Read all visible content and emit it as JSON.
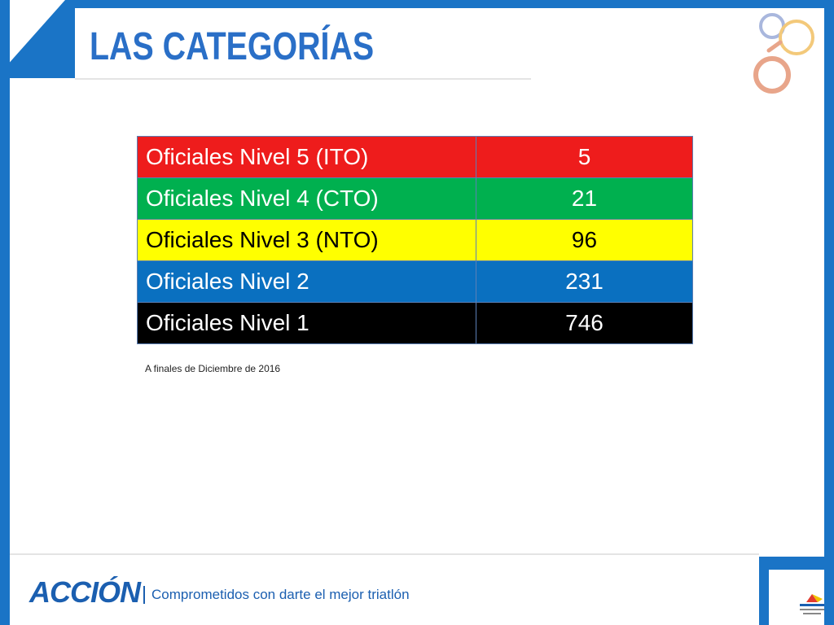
{
  "slide": {
    "title": "LAS CATEGORÍAS",
    "note": "A finales de Diciembre de 2016"
  },
  "table": {
    "rows": [
      {
        "label": "Oficiales Nivel 5 (ITO)",
        "value": "5",
        "bg": "#ee1c1c",
        "fg": "#ffffff"
      },
      {
        "label": "Oficiales Nivel 4 (CTO)",
        "value": "21",
        "bg": "#00b04f",
        "fg": "#ffffff"
      },
      {
        "label": "Oficiales Nivel 3 (NTO)",
        "value": "96",
        "bg": "#ffff00",
        "fg": "#000000"
      },
      {
        "label": "Oficiales Nivel 2",
        "value": "231",
        "bg": "#0a70c0",
        "fg": "#ffffff"
      },
      {
        "label": "Oficiales Nivel 1",
        "value": "746",
        "bg": "#000000",
        "fg": "#ffffff"
      }
    ]
  },
  "footer": {
    "brand": "ACCIÓN",
    "slogan": "Comprometidos con darte el mejor triatlón"
  },
  "colors": {
    "accent_blue": "#1a74c6",
    "title_blue": "#2a6fc7"
  }
}
